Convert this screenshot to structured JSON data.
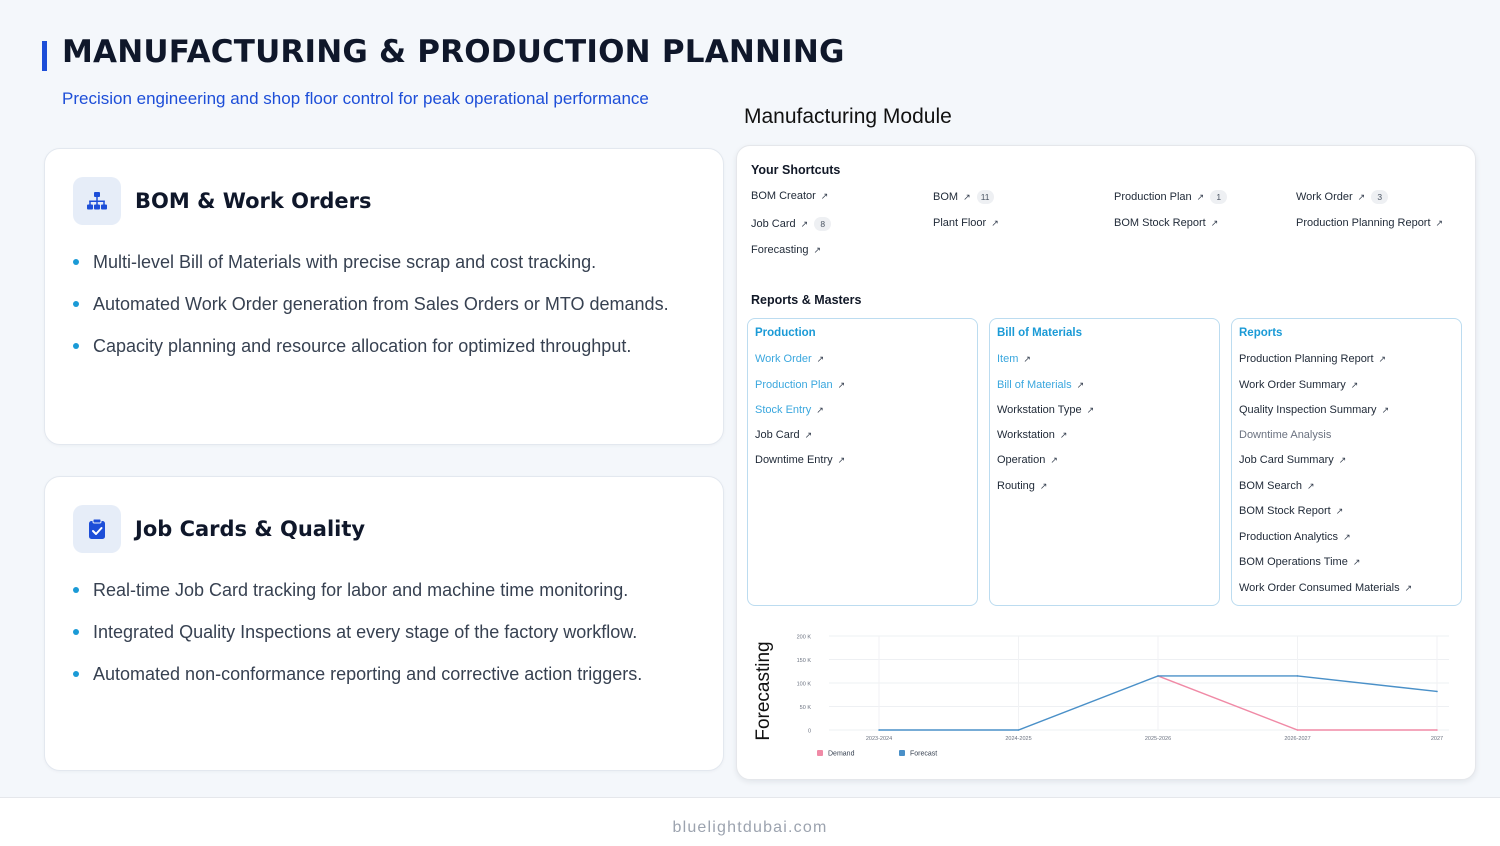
{
  "header": {
    "title": "MANUFACTURING & PRODUCTION PLANNING",
    "subtitle": "Precision engineering and shop floor control for peak operational performance"
  },
  "cards": [
    {
      "icon": "sitemap-icon",
      "title": "BOM & Work Orders",
      "bullets": [
        "Multi-level Bill of Materials with precise scrap and cost tracking.",
        "Automated Work Order generation from Sales Orders or MTO demands.",
        "Capacity planning and resource allocation for optimized throughput."
      ]
    },
    {
      "icon": "clipboard-check-icon",
      "title": "Job Cards & Quality",
      "bullets": [
        "Real-time Job Card tracking for labor and machine time monitoring.",
        "Integrated Quality Inspections at every stage of the factory workflow.",
        "Automated non-conformance reporting and corrective action triggers."
      ]
    }
  ],
  "module": {
    "label": "Manufacturing Module",
    "shortcuts_title": "Your Shortcuts",
    "shortcuts": [
      {
        "label": "BOM Creator",
        "badge": ""
      },
      {
        "label": "BOM",
        "badge": "11"
      },
      {
        "label": "Production Plan",
        "badge": "1"
      },
      {
        "label": "Work Order",
        "badge": "3"
      },
      {
        "label": "Job Card",
        "badge": "8"
      },
      {
        "label": "Plant Floor",
        "badge": ""
      },
      {
        "label": "BOM Stock Report",
        "badge": ""
      },
      {
        "label": "Production Planning Report",
        "badge": ""
      },
      {
        "label": "Forecasting",
        "badge": ""
      }
    ],
    "reports_title": "Reports & Masters",
    "groups": [
      {
        "title": "Production",
        "items": [
          {
            "label": "Work Order",
            "style": "blue"
          },
          {
            "label": "Production Plan",
            "style": "blue"
          },
          {
            "label": "Stock Entry",
            "style": "blue"
          },
          {
            "label": "Job Card",
            "style": "dark"
          },
          {
            "label": "Downtime Entry",
            "style": "dark"
          }
        ]
      },
      {
        "title": "Bill of Materials",
        "items": [
          {
            "label": "Item",
            "style": "blue"
          },
          {
            "label": "Bill of Materials",
            "style": "blue"
          },
          {
            "label": "Workstation Type",
            "style": "dark"
          },
          {
            "label": "Workstation",
            "style": "dark"
          },
          {
            "label": "Operation",
            "style": "dark"
          },
          {
            "label": "Routing",
            "style": "dark"
          }
        ]
      },
      {
        "title": "Reports",
        "items": [
          {
            "label": "Production Planning Report",
            "style": "dark"
          },
          {
            "label": "Work Order Summary",
            "style": "dark"
          },
          {
            "label": "Quality Inspection Summary",
            "style": "dark"
          },
          {
            "label": "Downtime Analysis",
            "style": "gray"
          },
          {
            "label": "Job Card Summary",
            "style": "dark"
          },
          {
            "label": "BOM Search",
            "style": "dark"
          },
          {
            "label": "BOM Stock Report",
            "style": "dark"
          },
          {
            "label": "Production Analytics",
            "style": "dark"
          },
          {
            "label": "BOM Operations Time",
            "style": "dark"
          },
          {
            "label": "Work Order Consumed Materials",
            "style": "dark"
          }
        ]
      }
    ],
    "forecast_label": "Forecasting"
  },
  "chart_data": {
    "type": "line",
    "x": [
      "2023-2024",
      "2024-2025",
      "2025-2026",
      "2026-2027",
      "2027"
    ],
    "y_ticks": [
      "0",
      "50 K",
      "100 K",
      "150 K",
      "200 K"
    ],
    "ylim": [
      0,
      200000
    ],
    "series": [
      {
        "name": "Demand",
        "color": "#f08aa6",
        "values": [
          null,
          null,
          115000,
          0,
          0
        ]
      },
      {
        "name": "Forecast",
        "color": "#4a90c8",
        "values": [
          0,
          0,
          115000,
          115000,
          82000
        ]
      }
    ],
    "legend": "bottom-left",
    "grid": true
  },
  "footer": {
    "text": "bluelightdubai.com"
  },
  "colors": {
    "accent": "#1d4ed8",
    "link": "#1a9ad6",
    "box_border": "#bcdcf0"
  }
}
